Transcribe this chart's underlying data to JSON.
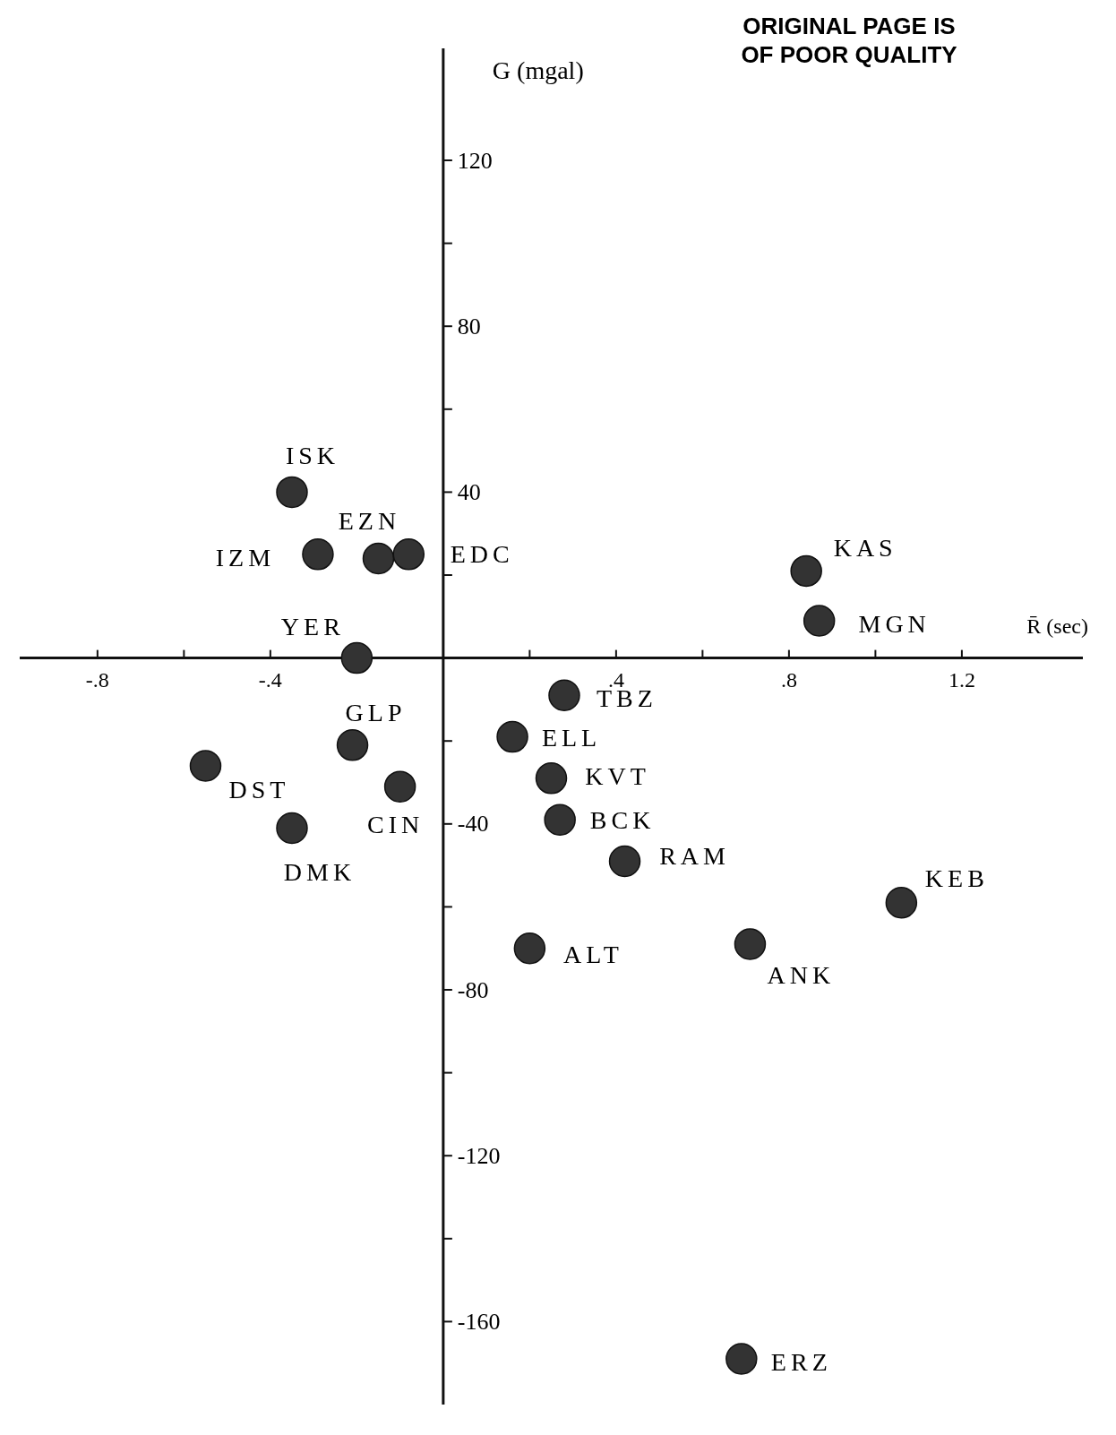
{
  "chart_data": {
    "type": "scatter",
    "xlabel": "R̄ (sec)",
    "ylabel": "G (mgal)",
    "annotations": [
      "ORIGINAL PAGE IS OF POOR QUALITY",
      {
        "text": "ISK",
        "x": -0.35,
        "y": 40
      },
      {
        "text": "IZM",
        "x": -0.29,
        "y": 25
      },
      {
        "text": "EZN",
        "x": -0.15,
        "y": 24
      },
      {
        "text": "EDC",
        "x": -0.08,
        "y": 25
      },
      {
        "text": "KAS",
        "x": 0.84,
        "y": 21
      },
      {
        "text": "MGN",
        "x": 0.87,
        "y": 9
      },
      {
        "text": "YER",
        "x": -0.2,
        "y": 0
      },
      {
        "text": "TBZ",
        "x": 0.28,
        "y": -9
      },
      {
        "text": "ELL",
        "x": 0.16,
        "y": -19
      },
      {
        "text": "GLP",
        "x": -0.21,
        "y": -21
      },
      {
        "text": "DST",
        "x": -0.55,
        "y": -26
      },
      {
        "text": "CIN",
        "x": -0.1,
        "y": -31
      },
      {
        "text": "KVT",
        "x": 0.25,
        "y": -29
      },
      {
        "text": "BCK",
        "x": 0.27,
        "y": -39
      },
      {
        "text": "DMK",
        "x": -0.35,
        "y": -41
      },
      {
        "text": "RAM",
        "x": 0.42,
        "y": -49
      },
      {
        "text": "KEB",
        "x": 1.06,
        "y": -59
      },
      {
        "text": "ALT",
        "x": 0.2,
        "y": -70
      },
      {
        "text": "ANK",
        "x": 0.71,
        "y": -69
      },
      {
        "text": "ERZ",
        "x": 0.69,
        "y": -169
      }
    ],
    "x": [
      -0.35,
      -0.29,
      -0.15,
      -0.08,
      0.84,
      0.87,
      -0.2,
      0.28,
      0.16,
      -0.21,
      -0.55,
      -0.1,
      0.25,
      0.27,
      -0.35,
      0.42,
      1.06,
      0.2,
      0.71,
      0.69
    ],
    "values": [
      40,
      25,
      24,
      25,
      21,
      9,
      0,
      -9,
      -19,
      -21,
      -26,
      -31,
      -29,
      -39,
      -41,
      -49,
      -59,
      -70,
      -69,
      -169
    ],
    "color": "#333333",
    "marker": "circle",
    "xlim": [
      -0.98,
      1.48
    ],
    "ylim": [
      -180,
      147
    ],
    "xticks": [
      {
        "value": -0.8,
        "label": "-.8"
      },
      {
        "value": -0.6,
        "label": null
      },
      {
        "value": -0.4,
        "label": "-.4"
      },
      {
        "value": -0.2,
        "label": null
      },
      {
        "value": 0.2,
        "label": null
      },
      {
        "value": 0.4,
        "label": ".4"
      },
      {
        "value": 0.6,
        "label": null
      },
      {
        "value": 0.8,
        "label": ".8"
      },
      {
        "value": 1.0,
        "label": null
      },
      {
        "value": 1.2,
        "label": "1.2"
      }
    ],
    "yticks": [
      120,
      {
        "value": 100,
        "label": null
      },
      80,
      {
        "value": 60,
        "label": null
      },
      40,
      {
        "value": 20,
        "label": null
      },
      {
        "value": -20,
        "label": null
      },
      -40,
      {
        "value": -60,
        "label": null
      },
      -80,
      {
        "value": -100,
        "label": null
      },
      -120,
      {
        "value": -140,
        "label": null
      },
      -160
    ],
    "grid": false
  }
}
